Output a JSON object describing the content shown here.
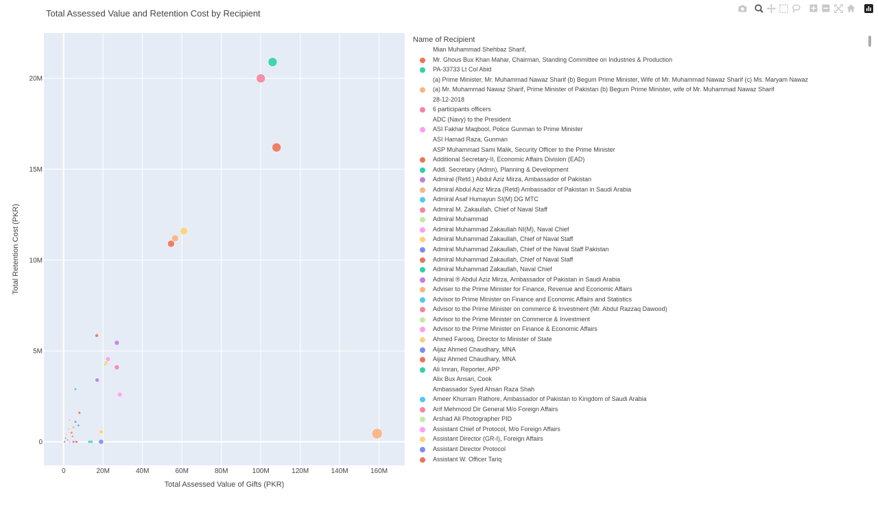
{
  "chart_data": {
    "type": "scatter",
    "title": "Total Assessed Value and Retention Cost by Recipient",
    "xlabel": "Total Assessed Value of Gifts (PKR)",
    "ylabel": "Total Retention Cost (PKR)",
    "xlim": [
      -10000000,
      173000000
    ],
    "ylim": [
      -1300000,
      22500000
    ],
    "x_ticks": [
      {
        "value": 0,
        "label": "0"
      },
      {
        "value": 20000000,
        "label": "20M"
      },
      {
        "value": 40000000,
        "label": "40M"
      },
      {
        "value": 60000000,
        "label": "60M"
      },
      {
        "value": 80000000,
        "label": "80M"
      },
      {
        "value": 100000000,
        "label": "100M"
      },
      {
        "value": 120000000,
        "label": "120M"
      },
      {
        "value": 140000000,
        "label": "140M"
      },
      {
        "value": 160000000,
        "label": "160M"
      }
    ],
    "y_ticks": [
      {
        "value": 0,
        "label": "0"
      },
      {
        "value": 5000000,
        "label": "5M"
      },
      {
        "value": 10000000,
        "label": "10M"
      },
      {
        "value": 15000000,
        "label": "15M"
      },
      {
        "value": 20000000,
        "label": "20M"
      }
    ],
    "legend_title": "Name of Recipient",
    "legend_placement": "right",
    "grid": true,
    "points": [
      {
        "x": 106000000,
        "y": 20900000,
        "size": 12,
        "color": "#2fd1a9"
      },
      {
        "x": 100000000,
        "y": 20000000,
        "size": 12,
        "color": "#f7859f"
      },
      {
        "x": 108000000,
        "y": 16200000,
        "size": 12,
        "color": "#ee7358"
      },
      {
        "x": 61000000,
        "y": 11600000,
        "size": 10,
        "color": "#fdd27a"
      },
      {
        "x": 56500000,
        "y": 11200000,
        "size": 9,
        "color": "#fcb37e"
      },
      {
        "x": 54500000,
        "y": 10900000,
        "size": 9,
        "color": "#ee7358"
      },
      {
        "x": 159000000,
        "y": 450000,
        "size": 14,
        "color": "#fcb37e"
      },
      {
        "x": 27000000,
        "y": 5450000,
        "size": 6,
        "color": "#c17ee7"
      },
      {
        "x": 16800000,
        "y": 5850000,
        "size": 4,
        "color": "#ee7358"
      },
      {
        "x": 22500000,
        "y": 4550000,
        "size": 6,
        "color": "#fd9ef3"
      },
      {
        "x": 21600000,
        "y": 4350000,
        "size": 5,
        "color": "#fdd27a"
      },
      {
        "x": 21000000,
        "y": 4250000,
        "size": 4,
        "color": "#c5e8a5"
      },
      {
        "x": 27000000,
        "y": 4100000,
        "size": 6,
        "color": "#f7859f"
      },
      {
        "x": 17000000,
        "y": 3400000,
        "size": 5,
        "color": "#c17ee7"
      },
      {
        "x": 28500000,
        "y": 2600000,
        "size": 6,
        "color": "#fd9ef3"
      },
      {
        "x": 6000000,
        "y": 2900000,
        "size": 3,
        "color": "#4fc8f6"
      },
      {
        "x": 8000000,
        "y": 1600000,
        "size": 3,
        "color": "#ee7358"
      },
      {
        "x": 7500000,
        "y": 900000,
        "size": 3,
        "color": "#4fc8f6"
      },
      {
        "x": 6000000,
        "y": 1100000,
        "size": 3,
        "color": "#c17ee7"
      },
      {
        "x": 5000000,
        "y": 800000,
        "size": 3,
        "color": "#fcb37e"
      },
      {
        "x": 4000000,
        "y": 500000,
        "size": 3,
        "color": "#f7859f"
      },
      {
        "x": 4500000,
        "y": 300000,
        "size": 2,
        "color": "#ee7358"
      },
      {
        "x": 3000000,
        "y": 1200000,
        "size": 2,
        "color": "#fd9ef3"
      },
      {
        "x": 2000000,
        "y": 2000000,
        "size": 2,
        "color": "#c5e8a5"
      },
      {
        "x": 1500000,
        "y": 400000,
        "size": 2,
        "color": "#fdd27a"
      },
      {
        "x": 19000000,
        "y": 550000,
        "size": 5,
        "color": "#fdd27a"
      },
      {
        "x": 19000000,
        "y": 0,
        "size": 6,
        "color": "#7d8cf0"
      },
      {
        "x": 14000000,
        "y": 0,
        "size": 4,
        "color": "#4fc8f6"
      },
      {
        "x": 13000000,
        "y": 0,
        "size": 3,
        "color": "#2fd1a9"
      },
      {
        "x": 6500000,
        "y": 0,
        "size": 3,
        "color": "#ee7358"
      },
      {
        "x": 5000000,
        "y": 0,
        "size": 3,
        "color": "#c17ee7"
      },
      {
        "x": 3000000,
        "y": 0,
        "size": 2,
        "color": "#fd9ef3"
      },
      {
        "x": 2000000,
        "y": 100000,
        "size": 2,
        "color": "#4fc8f6"
      },
      {
        "x": 1000000,
        "y": 200000,
        "size": 2,
        "color": "#f7859f"
      },
      {
        "x": 500000,
        "y": 0,
        "size": 2,
        "color": "#ee7358"
      },
      {
        "x": 2500000,
        "y": 700000,
        "size": 2,
        "color": "#fcb37e"
      }
    ]
  },
  "legend": [
    {
      "label": "Mian  Muhammad Shehbaz  Sharif,",
      "color": ""
    },
    {
      "label": "Mr. Ghous Bux Khan Mahar,  Chairman, Standing  Committee on  Industries  & Production",
      "color": "#ee7358"
    },
    {
      "label": "PA-33733 Lt Col Abid",
      "color": "#2fd1a9"
    },
    {
      "label": "(a)  Prime  Minister, Mr.  Muhammad Nawaz Sharif (b)  Begum  Prime Minister,  Wife  of Mr. Muhammad  Nawaz Sharif (c)  Ms.  Maryam Nawaz",
      "color": ""
    },
    {
      "label": "(a) Mr.  Muhammad Nawaz  Sharif,  Prime Minister of Pakistan (b)  Begum  Prime Minister,  wife  of Mr. Muhammad  Nawaz Sharif",
      "color": "#fcb37e"
    },
    {
      "label": "28-12-2018",
      "color": ""
    },
    {
      "label": "6 participants officers",
      "color": "#f7859f"
    },
    {
      "label": "ADC  (Navy)  to  the President",
      "color": ""
    },
    {
      "label": "ASI  Fakhar  Maqbool, Police  Gunman  to  Prime Minister",
      "color": "#fd9ef3"
    },
    {
      "label": "ASI  Hamad  Raza, Gunman",
      "color": ""
    },
    {
      "label": "ASP  Muhammad Sami  Malik,  Security Officer  to  the  Prime Minister",
      "color": ""
    },
    {
      "label": "Additional  Secretary-II, Economic  Affairs  Division (EAD)",
      "color": "#ee7358"
    },
    {
      "label": "Addl.  Secretary  (Admn), Planning & Development",
      "color": "#2fd1a9"
    },
    {
      "label": "Admiral  (Retd.)  Abdul Aziz  Mirza,  Ambassador of Pakistan",
      "color": "#c17ee7"
    },
    {
      "label": "Admiral  Abdul  Aziz  Mirza (Retd)  Ambassador  of Pakistan in Saudi Arabia",
      "color": "#fcb37e"
    },
    {
      "label": "Admiral  Asaf  Humayun SI(M) DG MTC",
      "color": "#4fc8f6"
    },
    {
      "label": "Admiral  M.  Zakaullah, Chief of Naval Staff",
      "color": "#f7859f"
    },
    {
      "label": "Admiral  Muhammad",
      "color": "#c5e8a5"
    },
    {
      "label": "Admiral  Muhammad Zakaullah  NI(M),  Naval Chief",
      "color": "#fd9ef3"
    },
    {
      "label": "Admiral  Muhammad Zakaullah,  Chief  of Naval Staff",
      "color": "#fdd27a"
    },
    {
      "label": "Admiral  Muhammad  Zakaullah,  Chief  of  the Naval Staff Pakistan",
      "color": "#7d8cf0"
    },
    {
      "label": "Admiral  Muhammad Zakaullah, Chief  of Naval Staff",
      "color": "#ee7358"
    },
    {
      "label": "Admiral  Muhammad Zakaullah, Naval Chief",
      "color": "#2fd1a9"
    },
    {
      "label": "Admiral  ® Abdul  Aziz Mirza,  Ambassador  of Pakistan in Saudi Arabia",
      "color": "#c17ee7"
    },
    {
      "label": "Adviser  to  the  Prime Minister  for  Finance, Revenue  and Economic Affairs",
      "color": "#fcb37e"
    },
    {
      "label": "Advisor  to  Prime Minister  on  Finance  and Economic  Affairs  and Statistics",
      "color": "#4fc8f6"
    },
    {
      "label": "Advisor  to  the  Prime Minister  on  commerce & Investment  (Mr.  Abdul Razzaq Dawood)",
      "color": "#f7859f"
    },
    {
      "label": "Advisor  to  the  Prime  Minister  on Commerce & Investment",
      "color": "#c5e8a5"
    },
    {
      "label": "Advisor  to  the  Prime Minister  on Finance & Economic Affairs",
      "color": "#fd9ef3"
    },
    {
      "label": "Ahmed  Farooq,  Director  to Minister of State",
      "color": "#fdd27a"
    },
    {
      "label": "Aijaz  Ahmed Chaudhary, MNA",
      "color": "#7d8cf0"
    },
    {
      "label": "Aijaz  Ahmed  Chaudhary, MNA",
      "color": "#ee7358"
    },
    {
      "label": "Ali Imran, Reporter, APP",
      "color": "#2fd1a9"
    },
    {
      "label": "Alix Bux Ansari, Cook",
      "color": ""
    },
    {
      "label": "Ambassador  Syed Ahsan Raza Shah",
      "color": ""
    },
    {
      "label": "Ameer  Khurram  Rathore, Ambassador  of Pakistan  to Kingdom of Saudi Arabia",
      "color": "#4fc8f6"
    },
    {
      "label": "Arif  Mehmood  Dir General  M/o  Foreign Affairs",
      "color": "#f7859f"
    },
    {
      "label": "Arshad  Ali  Photographer PID",
      "color": "#c5e8a5"
    },
    {
      "label": "Assistant  Chief  of Protocol,  M/o  Foreign Affairs",
      "color": "#fd9ef3"
    },
    {
      "label": "Assistant  Director (GR-I),  Foreign Affairs",
      "color": "#fdd27a"
    },
    {
      "label": "Assistant Director Protocol",
      "color": "#7d8cf0"
    },
    {
      "label": "Assistant W. Officer Tariq",
      "color": "#ee7358"
    }
  ],
  "modebar": [
    "camera-icon",
    "zoom-icon",
    "pan-icon",
    "box-select-icon",
    "lasso-icon",
    "zoom-in-icon",
    "zoom-out-icon",
    "autoscale-icon",
    "reset-axes-icon",
    "plotly-logo-icon"
  ]
}
